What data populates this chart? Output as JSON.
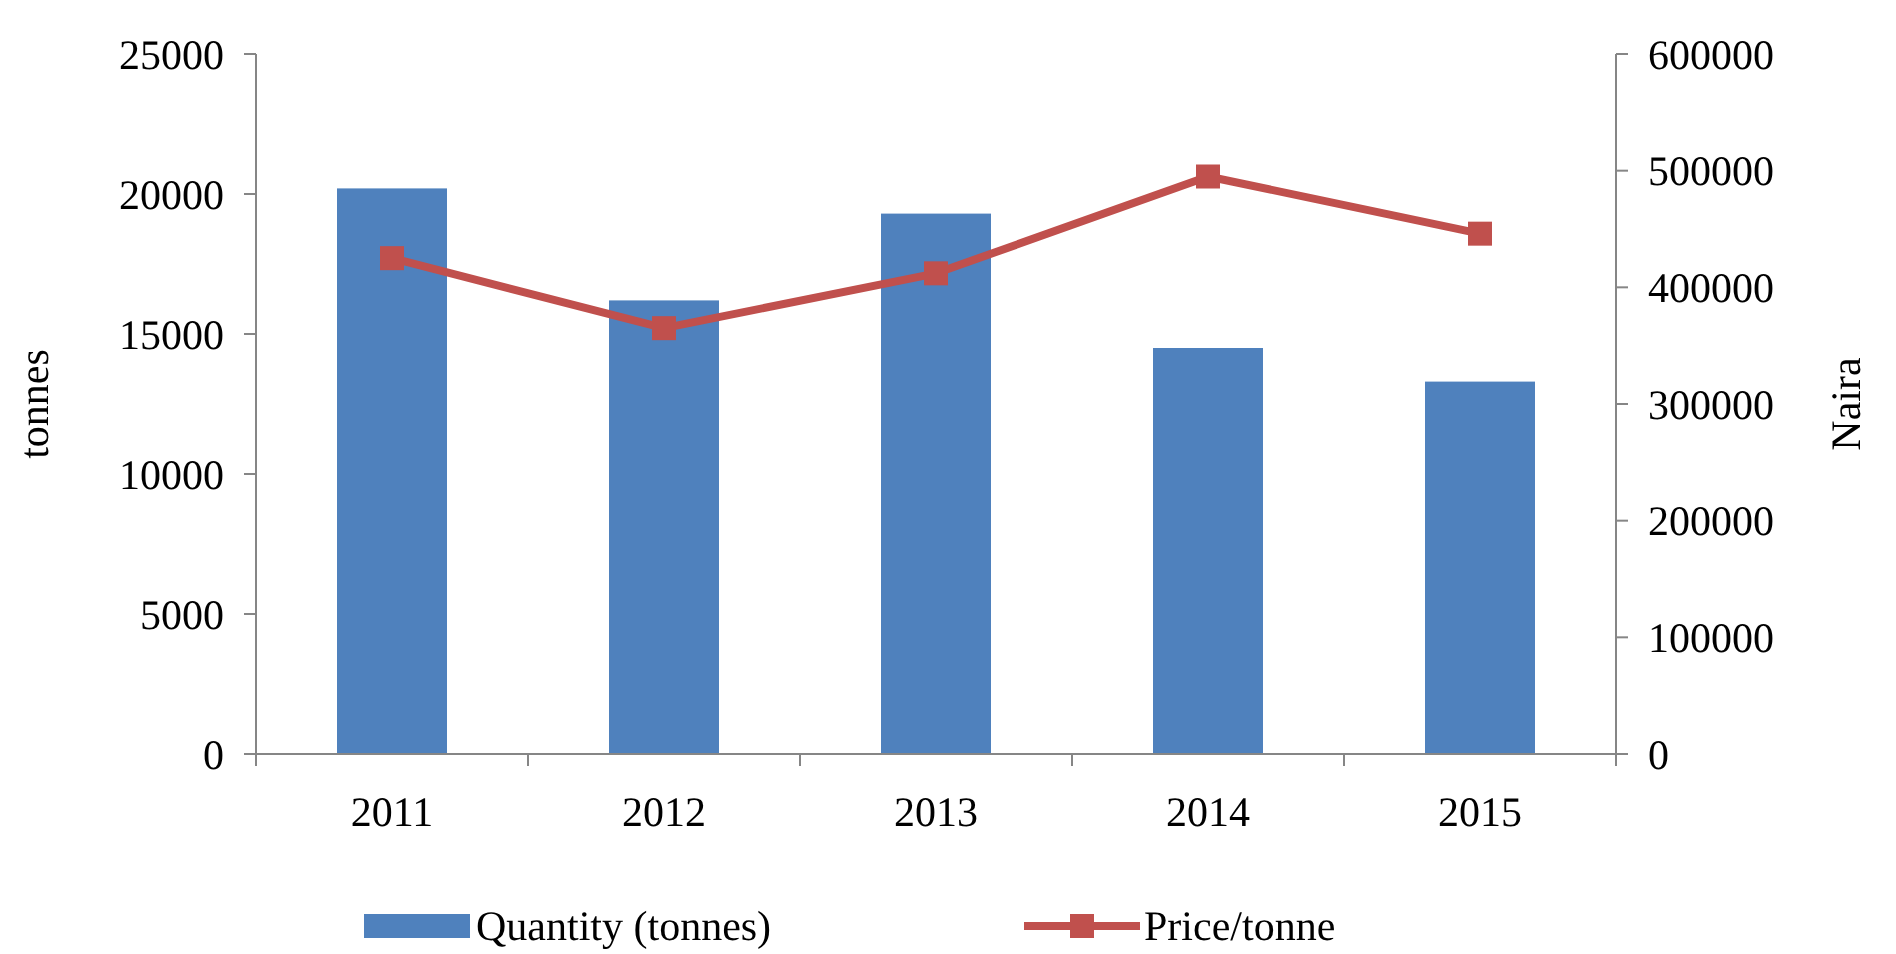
{
  "chart_data": {
    "type": "bar",
    "categories": [
      "2011",
      "2012",
      "2013",
      "2014",
      "2015"
    ],
    "series": [
      {
        "name": "Quantity (tonnes)",
        "color": "#4f81bd",
        "values": [
          20200,
          16200,
          19300,
          14500,
          13300
        ]
      },
      {
        "name": "Price/tonne",
        "type": "line",
        "axis": "y2",
        "color": "#c0504d",
        "marker": "square",
        "values": [
          425000,
          365000,
          412000,
          495000,
          446000
        ]
      }
    ],
    "ylabel": "tonnes",
    "y2label": "Naira",
    "ylim": [
      0,
      25000
    ],
    "yticks": [
      0,
      5000,
      10000,
      15000,
      20000,
      25000
    ],
    "y2lim": [
      0,
      600000
    ],
    "y2ticks": [
      0,
      100000,
      200000,
      300000,
      400000,
      500000,
      600000
    ],
    "legend": "bottom",
    "grid": false
  }
}
